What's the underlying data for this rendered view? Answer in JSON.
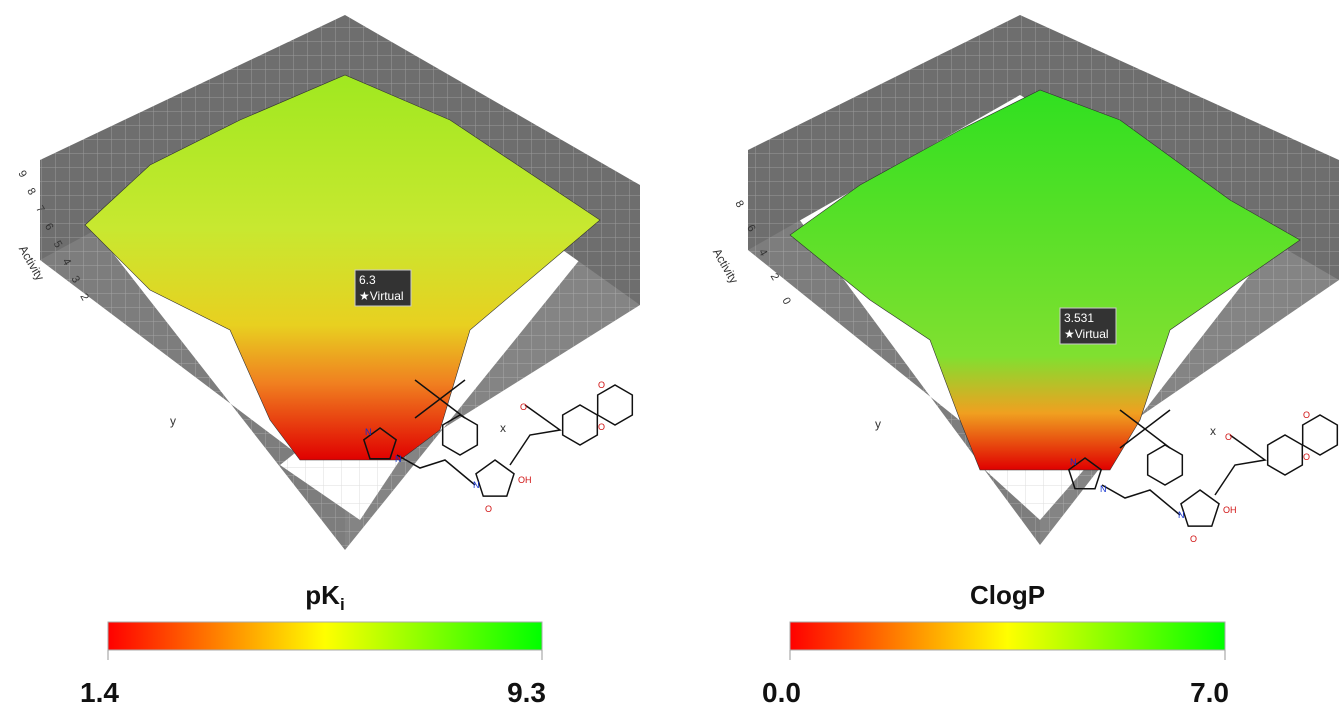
{
  "panels": [
    {
      "axis_title": "Activity",
      "ticks": [
        9,
        8,
        7,
        6,
        5,
        4,
        3,
        2
      ],
      "x_label": "x",
      "y_label": "y",
      "tooltip": {
        "value": "6.3",
        "label": "★Virtual"
      },
      "colorbar": {
        "title": "pK",
        "title_sub": "i",
        "min": "1.4",
        "max": "9.3"
      },
      "molecule": {
        "atoms": [
          "N",
          "N",
          "N",
          "O",
          "OH",
          "O",
          "O",
          "O"
        ]
      }
    },
    {
      "axis_title": "Activity",
      "ticks": [
        8,
        6,
        4,
        2,
        0
      ],
      "x_label": "x",
      "y_label": "y",
      "tooltip": {
        "value": "3.531",
        "label": "★Virtual"
      },
      "colorbar": {
        "title": "ClogP",
        "min": "0.0",
        "max": "7.0"
      },
      "molecule": {
        "atoms": [
          "N",
          "N",
          "N",
          "O",
          "OH",
          "O",
          "O",
          "O"
        ]
      }
    }
  ]
}
